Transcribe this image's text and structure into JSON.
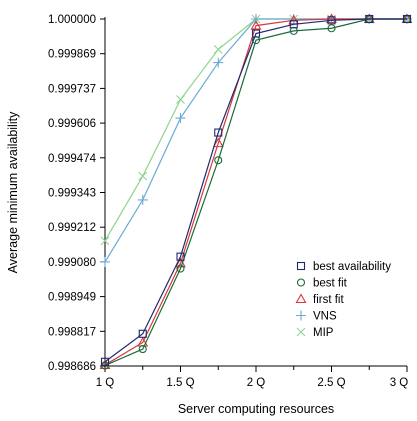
{
  "chart_data": {
    "type": "line",
    "xlabel": "Server computing resources",
    "ylabel": "Average minimum availability",
    "x": [
      1,
      1.25,
      1.5,
      1.75,
      2,
      2.25,
      2.5,
      2.75,
      3
    ],
    "x_tick_values": [
      1,
      1.5,
      2,
      2.5,
      3
    ],
    "x_tick_labels": [
      "1 Q",
      "1.5 Q",
      "2 Q",
      "2.5 Q",
      "3 Q"
    ],
    "xlim": [
      1,
      3
    ],
    "y_tick_labels": [
      "0.998686",
      "0.998817",
      "0.998949",
      "0.999080",
      "0.999212",
      "0.999343",
      "0.999474",
      "0.999606",
      "0.999737",
      "0.999869",
      "1.000000"
    ],
    "ylim": [
      0.998686,
      1.0
    ],
    "grid": false,
    "legend_position": "bottom-right",
    "series": [
      {
        "name": "best availability",
        "marker": "square",
        "color": "#1f2a6e",
        "values": [
          0.998702,
          0.998808,
          0.9991,
          0.99957,
          0.999945,
          0.99998,
          0.999995,
          1.0,
          1.0
        ]
      },
      {
        "name": "best fit",
        "marker": "circle",
        "color": "#1a6b3a",
        "values": [
          0.998688,
          0.99875,
          0.999055,
          0.999465,
          0.99992,
          0.999955,
          0.999965,
          1.0,
          1.0
        ]
      },
      {
        "name": "first fit",
        "marker": "triangle",
        "color": "#d8383a",
        "values": [
          0.99869,
          0.998775,
          0.999075,
          0.99953,
          0.999975,
          0.999995,
          1.0,
          1.0,
          1.0
        ]
      },
      {
        "name": "VNS",
        "marker": "plus",
        "color": "#6aaad6",
        "values": [
          0.99908,
          0.999315,
          0.999625,
          0.999835,
          1.0,
          1.0,
          1.0,
          1.0,
          1.0
        ]
      },
      {
        "name": "MIP",
        "marker": "cross",
        "color": "#8ed48e",
        "values": [
          0.99916,
          0.999405,
          0.999695,
          0.999885,
          1.0,
          1.0,
          1.0,
          1.0,
          1.0
        ]
      }
    ]
  }
}
